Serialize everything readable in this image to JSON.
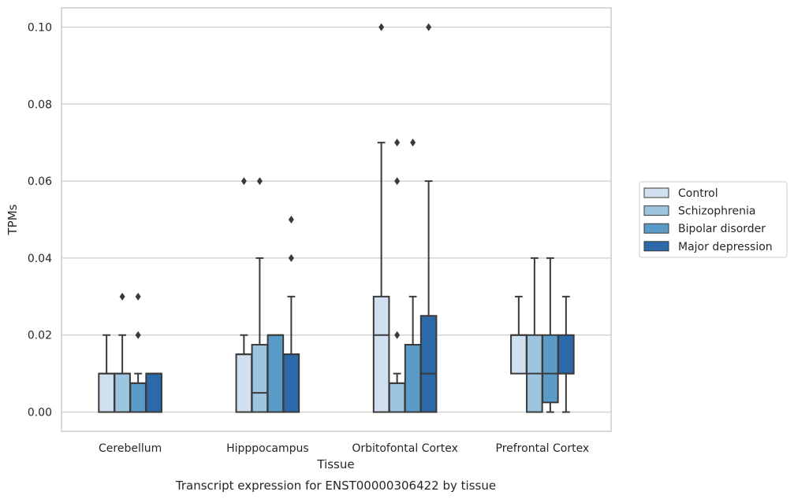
{
  "chart_data": {
    "type": "box",
    "title": "",
    "caption": "Transcript expression for ENST00000306422 by tissue",
    "xlabel": "Tissue",
    "ylabel": "TPMs",
    "ylim": [
      -0.005,
      0.105
    ],
    "yticks": [
      0.0,
      0.02,
      0.04,
      0.06,
      0.08,
      0.1
    ],
    "ytick_labels": [
      "0.00",
      "0.02",
      "0.04",
      "0.06",
      "0.08",
      "0.10"
    ],
    "grid": "horizontal",
    "legend_position": "right",
    "categories": [
      "Cerebellum",
      "Hipppocampus",
      "Orbitofontal Cortex",
      "Prefrontal Cortex"
    ],
    "series": [
      {
        "name": "Control",
        "color": "#d0e0f0",
        "boxes": [
          {
            "whislo": 0.0,
            "q1": 0.0,
            "med": 0.01,
            "q3": 0.01,
            "whishi": 0.02,
            "fliers": []
          },
          {
            "whislo": 0.0,
            "q1": 0.0,
            "med": 0.015,
            "q3": 0.015,
            "whishi": 0.02,
            "fliers": [
              0.06
            ]
          },
          {
            "whislo": 0.0,
            "q1": 0.0,
            "med": 0.02,
            "q3": 0.03,
            "whishi": 0.07,
            "fliers": [
              0.1
            ]
          },
          {
            "whislo": 0.01,
            "q1": 0.01,
            "med": 0.02,
            "q3": 0.02,
            "whishi": 0.03,
            "fliers": []
          }
        ]
      },
      {
        "name": "Schizophrenia",
        "color": "#9dc5df",
        "boxes": [
          {
            "whislo": 0.0,
            "q1": 0.0,
            "med": 0.01,
            "q3": 0.01,
            "whishi": 0.02,
            "fliers": [
              0.03
            ]
          },
          {
            "whislo": 0.0,
            "q1": 0.0,
            "med": 0.005,
            "q3": 0.0175,
            "whishi": 0.04,
            "fliers": [
              0.06
            ]
          },
          {
            "whislo": 0.0,
            "q1": 0.0,
            "med": 0.0075,
            "q3": 0.0075,
            "whishi": 0.01,
            "fliers": [
              0.02,
              0.06,
              0.07
            ]
          },
          {
            "whislo": 0.0,
            "q1": 0.0,
            "med": 0.01,
            "q3": 0.02,
            "whishi": 0.04,
            "fliers": []
          }
        ]
      },
      {
        "name": "Bipolar disorder",
        "color": "#5b9bc8",
        "boxes": [
          {
            "whislo": 0.0,
            "q1": 0.0,
            "med": 0.0075,
            "q3": 0.0075,
            "whishi": 0.01,
            "fliers": [
              0.02,
              0.03
            ]
          },
          {
            "whislo": 0.0,
            "q1": 0.0,
            "med": 0.02,
            "q3": 0.02,
            "whishi": 0.02,
            "fliers": []
          },
          {
            "whislo": 0.0,
            "q1": 0.0,
            "med": 0.0175,
            "q3": 0.0175,
            "whishi": 0.03,
            "fliers": [
              0.07
            ]
          },
          {
            "whislo": 0.0,
            "q1": 0.0025,
            "med": 0.01,
            "q3": 0.02,
            "whishi": 0.04,
            "fliers": []
          }
        ]
      },
      {
        "name": "Major depression",
        "color": "#2c69a8",
        "boxes": [
          {
            "whislo": 0.0,
            "q1": 0.0,
            "med": 0.01,
            "q3": 0.01,
            "whishi": 0.01,
            "fliers": []
          },
          {
            "whislo": 0.0,
            "q1": 0.0,
            "med": 0.015,
            "q3": 0.015,
            "whishi": 0.03,
            "fliers": [
              0.04,
              0.05
            ]
          },
          {
            "whislo": 0.0,
            "q1": 0.0,
            "med": 0.01,
            "q3": 0.025,
            "whishi": 0.06,
            "fliers": [
              0.1
            ]
          },
          {
            "whislo": 0.0,
            "q1": 0.01,
            "med": 0.01,
            "q3": 0.02,
            "whishi": 0.03,
            "fliers": []
          }
        ]
      }
    ]
  }
}
